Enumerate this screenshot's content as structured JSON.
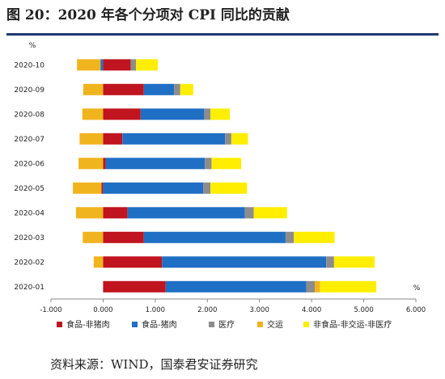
{
  "figure": {
    "title": "图 20：2020 年各个分项对 CPI 同比的贡献",
    "source": "资料来源：WIND，国泰君安证券研究"
  },
  "chart_data": {
    "type": "bar",
    "orientation": "horizontal",
    "stacked": true,
    "unit_top": "%",
    "unit_bottom": "%",
    "xlim": [
      -1.0,
      6.0
    ],
    "xticks": [
      "-1.000",
      "0.000",
      "1.000",
      "2.000",
      "3.000",
      "4.000",
      "5.000",
      "6.000"
    ],
    "categories": [
      "2020-10",
      "2020-09",
      "2020-08",
      "2020-07",
      "2020-06",
      "2020-05",
      "2020-04",
      "2020-03",
      "2020-02",
      "2020-01"
    ],
    "series": [
      {
        "name": "食品-非猪肉",
        "color": "#c0141e",
        "values": [
          0.53,
          0.78,
          0.72,
          0.37,
          0.05,
          -0.03,
          0.47,
          0.78,
          1.13,
          1.2
        ]
      },
      {
        "name": "食品-猪肉",
        "color": "#1f6fc5",
        "values": [
          -0.05,
          0.58,
          1.22,
          1.97,
          1.9,
          1.92,
          2.25,
          2.72,
          3.15,
          2.7
        ]
      },
      {
        "name": "医疗",
        "color": "#8c8c8c",
        "values": [
          0.1,
          0.12,
          0.12,
          0.12,
          0.13,
          0.14,
          0.17,
          0.16,
          0.15,
          0.16
        ]
      },
      {
        "name": "交运",
        "color": "#f0b41e",
        "values": [
          -0.45,
          -0.38,
          -0.4,
          -0.45,
          -0.47,
          -0.55,
          -0.52,
          -0.39,
          -0.18,
          0.1
        ]
      },
      {
        "name": "非食品-非交运-非医疗",
        "color": "#ffee00",
        "values": [
          0.42,
          0.25,
          0.37,
          0.32,
          0.57,
          0.7,
          0.64,
          0.78,
          0.78,
          1.08
        ]
      }
    ],
    "grid": false,
    "legend_position": "bottom"
  }
}
